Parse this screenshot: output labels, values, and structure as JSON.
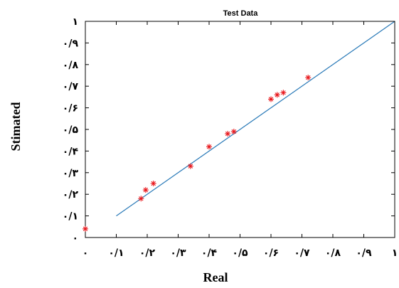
{
  "chart_data": {
    "type": "scatter",
    "title": "Test Data",
    "xlabel": "Real",
    "ylabel": "Stimated",
    "xlim": [
      0,
      1
    ],
    "ylim": [
      0,
      1
    ],
    "x_ticks": [
      0,
      0.1,
      0.2,
      0.3,
      0.4,
      0.5,
      0.6,
      0.7,
      0.8,
      0.9,
      1
    ],
    "y_ticks": [
      0,
      0.1,
      0.2,
      0.3,
      0.4,
      0.5,
      0.6,
      0.7,
      0.8,
      0.9,
      1
    ],
    "x_tick_labels": [
      "٠",
      "٠/١",
      "٠/٢",
      "٠/٣",
      "٠/۴",
      "٠/۵",
      "٠/۶",
      "٠/٧",
      "٠/٨",
      "٠/٩",
      "١"
    ],
    "y_tick_labels": [
      "٠",
      "٠/١",
      "٠/٢",
      "٠/٣",
      "٠/۴",
      "٠/۵",
      "٠/۶",
      "٠/٧",
      "٠/٨",
      "٠/٩",
      "١"
    ],
    "grid": false,
    "series": [
      {
        "marker": "asterisk",
        "color": "#e8161b",
        "points": [
          {
            "x": 0.0,
            "y": 0.04
          },
          {
            "x": 0.18,
            "y": 0.18
          },
          {
            "x": 0.195,
            "y": 0.22
          },
          {
            "x": 0.22,
            "y": 0.25
          },
          {
            "x": 0.34,
            "y": 0.33
          },
          {
            "x": 0.4,
            "y": 0.42
          },
          {
            "x": 0.46,
            "y": 0.48
          },
          {
            "x": 0.48,
            "y": 0.49
          },
          {
            "x": 0.6,
            "y": 0.64
          },
          {
            "x": 0.62,
            "y": 0.66
          },
          {
            "x": 0.64,
            "y": 0.67
          },
          {
            "x": 0.72,
            "y": 0.74
          }
        ]
      },
      {
        "type": "line",
        "color": "#2a7ab8",
        "x": [
          0.1,
          1.0
        ],
        "y": [
          0.1,
          1.0
        ]
      }
    ]
  }
}
